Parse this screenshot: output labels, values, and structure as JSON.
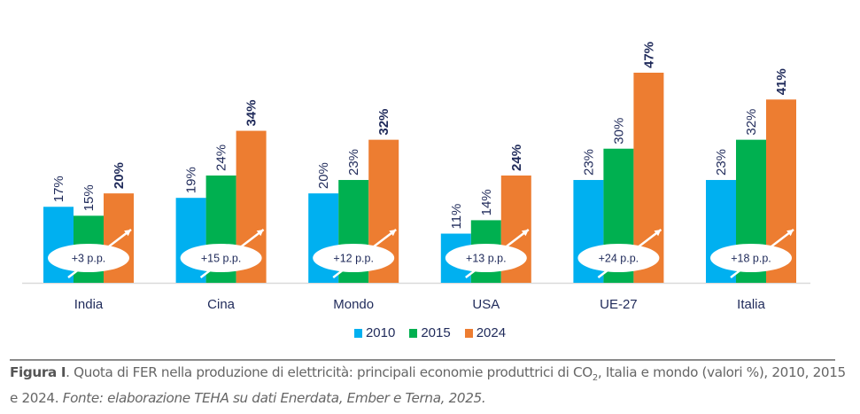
{
  "chart_data": {
    "type": "bar",
    "title": "",
    "xlabel": "",
    "ylabel": "",
    "ylim": [
      0,
      47
    ],
    "grid": false,
    "categories": [
      "India",
      "Cina",
      "Mondo",
      "USA",
      "UE-27",
      "Italia"
    ],
    "series": [
      {
        "name": "2010",
        "color": "#00b0f0",
        "values": [
          17,
          19,
          20,
          11,
          23,
          23
        ],
        "labels": [
          "17%",
          "19%",
          "20%",
          "11%",
          "23%",
          "23%"
        ]
      },
      {
        "name": "2015",
        "color": "#00b050",
        "values": [
          15,
          24,
          23,
          14,
          30,
          32
        ],
        "labels": [
          "15%",
          "24%",
          "23%",
          "14%",
          "30%",
          "32%"
        ]
      },
      {
        "name": "2024",
        "color": "#ed7d31",
        "values": [
          20,
          34,
          32,
          24,
          47,
          41
        ],
        "labels": [
          "20%",
          "34%",
          "32%",
          "24%",
          "47%",
          "41%"
        ]
      }
    ],
    "annotations": [
      "+3 p.p.",
      "+15 p.p.",
      "+12 p.p.",
      "+13 p.p.",
      "+24 p.p.",
      "+18 p.p."
    ],
    "legend_position": "bottom-center"
  },
  "legend": {
    "items": [
      {
        "label": "2010",
        "color": "#00b0f0"
      },
      {
        "label": "2015",
        "color": "#00b050"
      },
      {
        "label": "2024",
        "color": "#ed7d31"
      }
    ]
  },
  "caption": {
    "figure_label": "Figura I",
    "text_part1": ". Quota di FER nella produzione di elettricità: principali economie produttrici di CO",
    "subscript": "2",
    "text_part2": ", Italia e mondo (valori %), 2010, 2015 e 2024. ",
    "source_italic": "Fonte: elaborazione TEHA su dati Enerdata, Ember e Terna, 2025."
  }
}
